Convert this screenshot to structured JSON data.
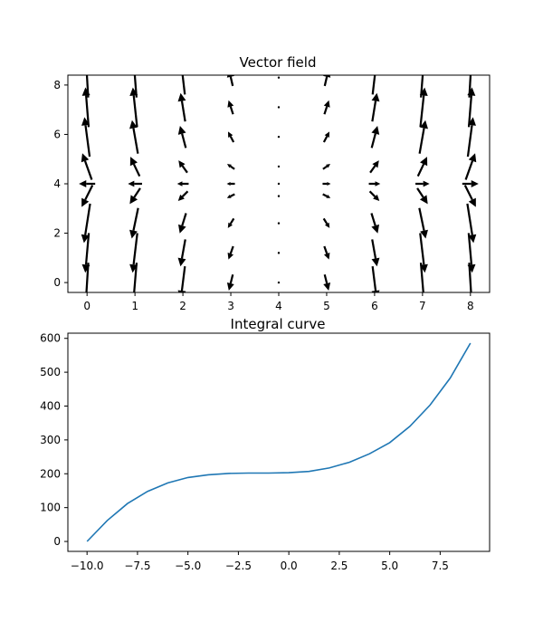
{
  "chart_data": [
    {
      "type": "quiver",
      "title": "Vector field",
      "xlabel": "",
      "ylabel": "",
      "xlim": [
        -0.4,
        8.4
      ],
      "ylim": [
        -0.4,
        8.4
      ],
      "xticks": [
        "0",
        "1",
        "2",
        "3",
        "4",
        "5",
        "6",
        "7",
        "8"
      ],
      "yticks": [
        "0",
        "2",
        "4",
        "6",
        "8"
      ],
      "grid_x": [
        0,
        1,
        2,
        3,
        4,
        5,
        6,
        7,
        8
      ],
      "grid_y": [
        0,
        1.2,
        2.4,
        3.5,
        4.0,
        4.7,
        5.9,
        7.1,
        8.3
      ],
      "field": "u = x - 4 ; v = (x - 4)^2 * (y - 4)",
      "arrow_color": "#000000"
    },
    {
      "type": "line",
      "title": "Integral curve",
      "xlabel": "",
      "ylabel": "",
      "xlim": [
        -10.95,
        9.95
      ],
      "ylim": [
        -29.3,
        615.3
      ],
      "xticks": [
        "−10.0",
        "−7.5",
        "−5.0",
        "−2.5",
        "0.0",
        "2.5",
        "5.0",
        "7.5"
      ],
      "xtick_values": [
        -10,
        -7.5,
        -5,
        -2.5,
        0,
        2.5,
        5,
        7.5
      ],
      "yticks": [
        "0",
        "100",
        "200",
        "300",
        "400",
        "500",
        "600"
      ],
      "ytick_values": [
        0,
        100,
        200,
        300,
        400,
        500,
        600
      ],
      "x": [
        -10,
        -9,
        -8,
        -7,
        -6,
        -5,
        -4,
        -3,
        -2,
        -1,
        0,
        1,
        2,
        3,
        4,
        5,
        6,
        7,
        8,
        9
      ],
      "y": [
        0,
        62,
        112,
        148,
        173,
        189,
        197,
        201,
        202,
        202,
        203,
        207,
        217,
        234,
        259,
        292,
        340,
        403,
        483,
        586
      ],
      "line_color": "#1f77b4"
    }
  ]
}
